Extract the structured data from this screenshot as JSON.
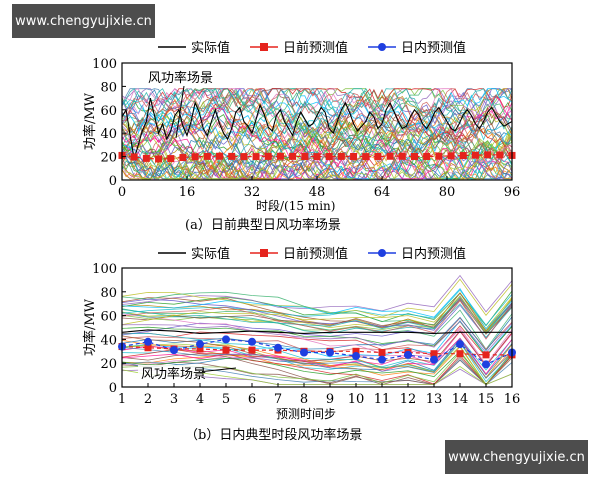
{
  "watermarks": {
    "top": "www.chengyujixie.cn",
    "bottom": "www.chengyujixie.cn"
  },
  "legend": {
    "actual": "实际值",
    "day_ahead": "日前预测值",
    "intraday": "日内预测值"
  },
  "colors": {
    "actual": "#000000",
    "day_ahead": "#e5231d",
    "intraday": "#1f3fe0"
  },
  "chart_data": [
    {
      "type": "line",
      "caption": "(a）日前典型日风功率场景",
      "xlabel": "时段/(15 min)",
      "ylabel": "功率/MW",
      "annotation": "风功率场景",
      "xlim": [
        0,
        96
      ],
      "ylim": [
        0,
        100
      ],
      "xticks": [
        0,
        16,
        32,
        48,
        64,
        80,
        96
      ],
      "yticks": [
        0,
        20,
        40,
        60,
        80,
        100
      ],
      "series": [
        {
          "name": "实际值",
          "values": [
            54,
            60,
            38,
            18,
            30,
            42,
            50,
            70,
            55,
            40,
            48,
            35,
            42,
            55,
            60,
            46,
            38,
            50,
            66,
            58,
            44,
            38,
            50,
            60,
            48,
            40,
            35,
            44,
            58,
            62,
            50,
            46,
            40,
            52,
            64,
            56,
            45,
            42,
            55,
            60,
            50,
            44,
            38,
            50,
            58,
            52,
            46,
            48,
            55,
            62,
            58,
            44,
            40,
            50,
            60,
            66,
            58,
            48,
            42,
            46,
            50,
            58,
            54,
            44,
            48,
            60,
            66,
            58,
            50,
            44,
            46,
            54,
            60,
            56,
            48,
            44,
            50,
            58,
            62,
            56,
            50,
            44,
            42,
            48,
            56,
            60,
            55,
            48,
            44,
            50,
            58,
            62,
            56,
            50,
            46,
            48,
            50
          ]
        },
        {
          "name": "日前预测值",
          "values": [
            21,
            20.5,
            20,
            19.6,
            19.2,
            18.8,
            18.5,
            18.3,
            18.1,
            18,
            18,
            18.1,
            18.3,
            18.6,
            18.9,
            19.2,
            19.5,
            19.7,
            19.9,
            20,
            20.1,
            20.2,
            20.2,
            20.3,
            20.3,
            20.3,
            20.2,
            20.2,
            20.1,
            20.1,
            20,
            20,
            20,
            20,
            20.1,
            20.1,
            20.2,
            20.2,
            20.2,
            20.3,
            20.3,
            20.3,
            20.2,
            20.2,
            20.2,
            20.1,
            20.1,
            20,
            20,
            20,
            20,
            20.1,
            20.1,
            20.2,
            20.2,
            20.2,
            20.2,
            20.1,
            20.1,
            20,
            20,
            20,
            20.1,
            20.1,
            20.2,
            20.2,
            20.3,
            20.3,
            20.3,
            20.3,
            20.2,
            20.2,
            20.1,
            20.1,
            20.1,
            20.1,
            20.2,
            20.2,
            20.3,
            20.4,
            20.5,
            20.6,
            20.7,
            20.8,
            20.9,
            21,
            21.1,
            21.2,
            21.3,
            21.4,
            21.5,
            21.5,
            21.5,
            21.4,
            21.3,
            21.2,
            21
          ]
        }
      ]
    },
    {
      "type": "line",
      "caption": "（b）日内典型时段风功率场景",
      "xlabel": "预测时间步",
      "ylabel": "功率/MW",
      "annotation": "风功率场景",
      "xlim": [
        1,
        16
      ],
      "ylim": [
        0,
        100
      ],
      "xticks": [
        1,
        2,
        3,
        4,
        5,
        6,
        7,
        8,
        9,
        10,
        11,
        12,
        13,
        14,
        15,
        16
      ],
      "yticks": [
        0,
        20,
        40,
        60,
        80,
        100
      ],
      "series": [
        {
          "name": "实际值",
          "values": [
            46,
            48,
            47,
            45,
            46,
            47,
            46,
            45,
            46,
            46,
            46,
            46,
            45,
            46,
            46,
            46
          ]
        },
        {
          "name": "日前预测值",
          "values": [
            34,
            33,
            32,
            32,
            31,
            31,
            31,
            30,
            30,
            30,
            29,
            29,
            28,
            28,
            27,
            27
          ]
        },
        {
          "name": "日内预测值",
          "values": [
            34,
            38,
            31,
            36,
            40,
            38,
            33,
            29,
            29,
            26,
            23,
            27,
            23,
            36,
            19,
            29
          ]
        }
      ]
    }
  ]
}
